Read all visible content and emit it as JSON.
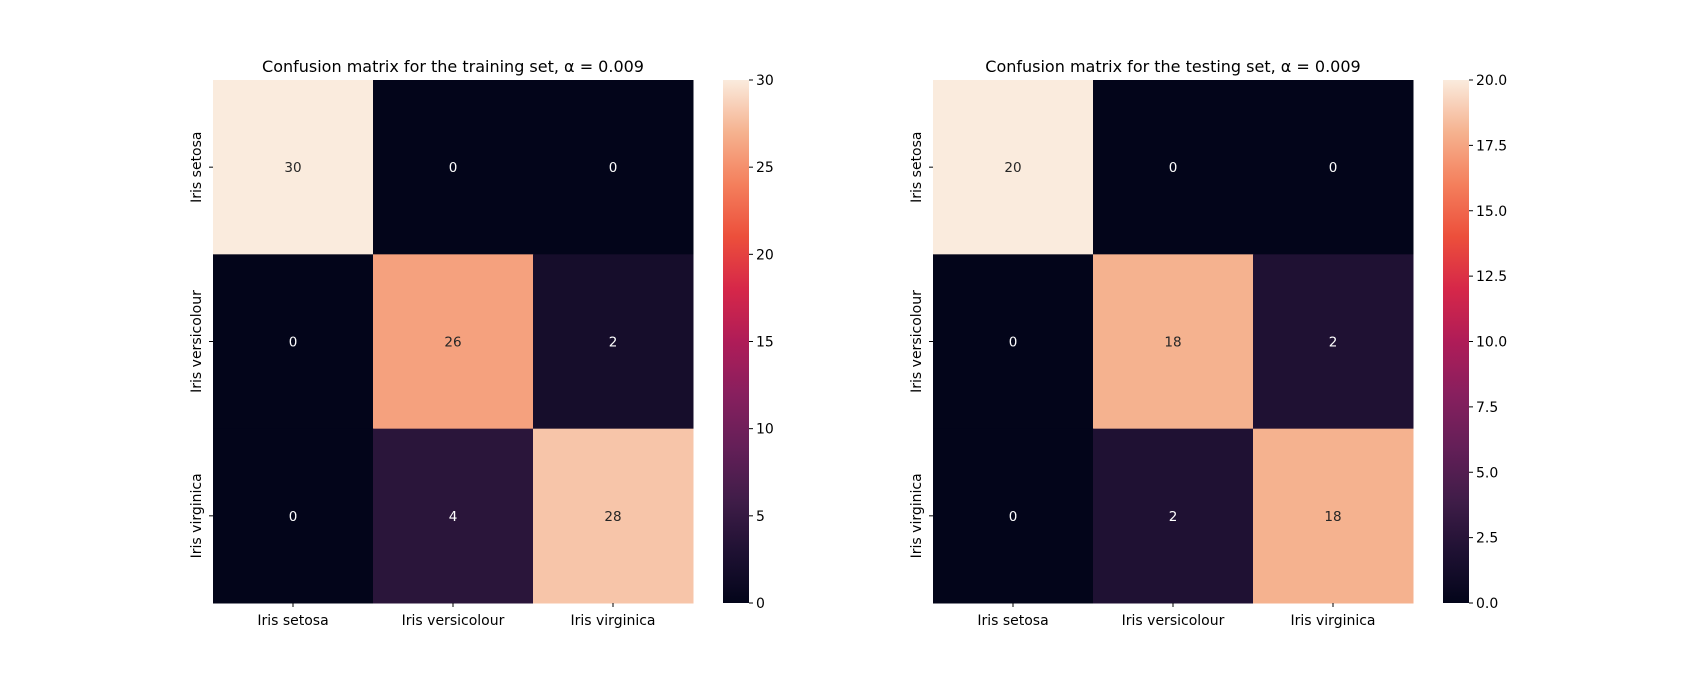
{
  "chart_data": [
    {
      "type": "heatmap",
      "title": "Confusion matrix for the training set, α = 0.009",
      "xlabel": "",
      "ylabel": "",
      "x_categories": [
        "Iris setosa",
        "Iris versicolour",
        "Iris virginica"
      ],
      "y_categories": [
        "Iris setosa",
        "Iris versicolour",
        "Iris virginica"
      ],
      "values": [
        [
          30,
          0,
          0
        ],
        [
          0,
          26,
          2
        ],
        [
          0,
          4,
          28
        ]
      ],
      "colorbar": {
        "min": 0,
        "max": 30,
        "ticks": [
          "0",
          "5",
          "10",
          "15",
          "20",
          "25",
          "30"
        ],
        "colormap": "rocket"
      }
    },
    {
      "type": "heatmap",
      "title": "Confusion matrix for the testing set, α = 0.009",
      "xlabel": "",
      "ylabel": "",
      "x_categories": [
        "Iris setosa",
        "Iris versicolour",
        "Iris virginica"
      ],
      "y_categories": [
        "Iris setosa",
        "Iris versicolour",
        "Iris virginica"
      ],
      "values": [
        [
          20,
          0,
          0
        ],
        [
          0,
          18,
          2
        ],
        [
          0,
          2,
          18
        ]
      ],
      "colorbar": {
        "min": 0,
        "max": 20,
        "ticks": [
          "0.0",
          "2.5",
          "5.0",
          "7.5",
          "10.0",
          "12.5",
          "15.0",
          "17.5",
          "20.0"
        ],
        "colormap": "rocket"
      }
    }
  ]
}
